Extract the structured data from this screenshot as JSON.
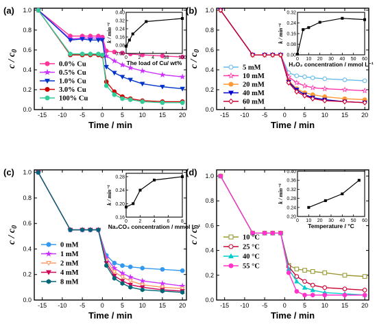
{
  "chart_data": [
    {
      "panel_label": "(a)",
      "type": "line",
      "xlabel": "Time / min",
      "ylabel": "c / c0",
      "xticks": [
        "-15",
        "-10",
        "-5",
        "0",
        "5",
        "10",
        "15",
        "20"
      ],
      "yticks": [
        "0.0",
        "0.2",
        "0.4",
        "0.6",
        "0.8",
        "1.0"
      ],
      "xlim": [
        -17,
        21
      ],
      "ylim": [
        0,
        1.02
      ],
      "legend_position": "bottom-left",
      "series": [
        {
          "name": "0.0% Cu",
          "color": "#ff3399",
          "marker": "circle",
          "x": [
            -16,
            -8,
            -5,
            -3,
            -1,
            0,
            1,
            3,
            5,
            7,
            10,
            15,
            20
          ],
          "y": [
            1.0,
            0.74,
            0.74,
            0.74,
            0.74,
            0.73,
            0.59,
            0.58,
            0.57,
            0.56,
            0.55,
            0.54,
            0.53
          ]
        },
        {
          "name": "0.5% Cu",
          "color": "#cc33ff",
          "marker": "star",
          "x": [
            -16,
            -8,
            -5,
            -3,
            -1,
            0,
            1,
            3,
            5,
            7,
            10,
            15,
            20
          ],
          "y": [
            1.0,
            0.71,
            0.72,
            0.72,
            0.72,
            0.71,
            0.54,
            0.49,
            0.45,
            0.42,
            0.39,
            0.35,
            0.33
          ]
        },
        {
          "name": "1.0% Cu",
          "color": "#0033cc",
          "marker": "triangle-down",
          "x": [
            -16,
            -8,
            -5,
            -3,
            -1,
            0,
            1,
            3,
            5,
            7,
            10,
            15,
            20
          ],
          "y": [
            1.0,
            0.7,
            0.71,
            0.7,
            0.7,
            0.7,
            0.43,
            0.37,
            0.33,
            0.3,
            0.26,
            0.23,
            0.21
          ]
        },
        {
          "name": "3.0% Cu",
          "color": "#cc0000",
          "marker": "circle",
          "x": [
            -16,
            -8,
            -5,
            -3,
            -1,
            0,
            1,
            3,
            5,
            7,
            10,
            15,
            20
          ],
          "y": [
            1.0,
            0.55,
            0.55,
            0.55,
            0.55,
            0.54,
            0.28,
            0.18,
            0.13,
            0.11,
            0.09,
            0.08,
            0.08
          ]
        },
        {
          "name": "100% Cu",
          "color": "#33cc99",
          "marker": "circle",
          "x": [
            -16,
            -8,
            -5,
            -3,
            -1,
            0,
            1,
            3,
            5,
            7,
            10,
            15,
            20
          ],
          "y": [
            1.0,
            0.56,
            0.56,
            0.56,
            0.56,
            0.55,
            0.24,
            0.15,
            0.11,
            0.1,
            0.08,
            0.07,
            0.07
          ]
        }
      ],
      "inset": {
        "xlabel": "The load of Cu/ wt%",
        "ylabel": "k / min⁻¹",
        "xticks": [
          "0",
          "2",
          "4",
          "98",
          "100"
        ],
        "yticks": [
          "0.00",
          "0.08",
          "0.16",
          "0.24",
          "0.32",
          "0.40"
        ],
        "ylim": [
          0,
          0.4
        ],
        "x_tick_positions": [
          0,
          2,
          4,
          6,
          8.4
        ],
        "x": [
          0,
          0.5,
          1,
          3,
          8.4
        ],
        "y": [
          0.07,
          0.13,
          0.19,
          0.31,
          0.34
        ]
      }
    },
    {
      "panel_label": "(b)",
      "type": "line",
      "xlabel": "Time / min",
      "ylabel": "c / c0",
      "xticks": [
        "-15",
        "-10",
        "-5",
        "0",
        "5",
        "10",
        "15",
        "20"
      ],
      "yticks": [
        "0.0",
        "0.2",
        "0.4",
        "0.6",
        "0.8",
        "1.0"
      ],
      "xlim": [
        -17,
        21
      ],
      "ylim": [
        0,
        1.02
      ],
      "legend_position": "bottom-left",
      "series": [
        {
          "name": "5  mM",
          "color": "#66bbee",
          "marker": "circle-open",
          "x": [
            -16,
            -8,
            -5,
            -3,
            -1,
            1,
            3,
            5,
            7,
            10,
            15,
            20
          ],
          "y": [
            1.0,
            0.55,
            0.55,
            0.55,
            0.55,
            0.37,
            0.34,
            0.33,
            0.32,
            0.31,
            0.3,
            0.29
          ]
        },
        {
          "name": "10  mM",
          "color": "#ff33aa",
          "marker": "star-open",
          "x": [
            -16,
            -8,
            -5,
            -3,
            -1,
            1,
            3,
            5,
            7,
            10,
            15,
            20
          ],
          "y": [
            1.0,
            0.55,
            0.55,
            0.55,
            0.55,
            0.33,
            0.27,
            0.24,
            0.22,
            0.21,
            0.2,
            0.19
          ]
        },
        {
          "name": "20  mM",
          "color": "#ff9933",
          "marker": "circle",
          "x": [
            -16,
            -8,
            -5,
            -3,
            -1,
            1,
            3,
            5,
            7,
            10,
            15,
            20
          ],
          "y": [
            1.0,
            0.55,
            0.55,
            0.55,
            0.55,
            0.29,
            0.21,
            0.17,
            0.15,
            0.13,
            0.11,
            0.1
          ]
        },
        {
          "name": "40  mM",
          "color": "#0000cc",
          "marker": "triangle-down",
          "x": [
            -16,
            -8,
            -5,
            -3,
            -1,
            1,
            3,
            5,
            7,
            10,
            15,
            20
          ],
          "y": [
            1.0,
            0.55,
            0.55,
            0.55,
            0.55,
            0.28,
            0.2,
            0.15,
            0.12,
            0.1,
            0.08,
            0.07
          ]
        },
        {
          "name": "60  mM",
          "color": "#cc0033",
          "marker": "diamond-open",
          "x": [
            -16,
            -8,
            -5,
            -3,
            -1,
            1,
            3,
            5,
            7,
            10,
            15,
            20
          ],
          "y": [
            1.0,
            0.55,
            0.55,
            0.55,
            0.55,
            0.27,
            0.18,
            0.14,
            0.11,
            0.09,
            0.08,
            0.07
          ]
        }
      ],
      "inset": {
        "xlabel": "H₂O₂ concentration / mmol L⁻¹",
        "ylabel": "k / min⁻¹",
        "xticks": [
          "0",
          "10",
          "20",
          "30",
          "40",
          "50",
          "60"
        ],
        "yticks": [
          "0.00",
          "0.08",
          "0.16",
          "0.24",
          "0.32"
        ],
        "ylim": [
          0,
          0.32
        ],
        "x_tick_positions": [
          0,
          10,
          20,
          30,
          40,
          50,
          60
        ],
        "x": [
          0,
          5,
          10,
          20,
          40,
          60
        ],
        "y": [
          0.005,
          0.19,
          0.205,
          0.245,
          0.275,
          0.265
        ]
      }
    },
    {
      "panel_label": "(c)",
      "type": "line",
      "xlabel": "Time / min",
      "ylabel": "c / c0",
      "xticks": [
        "-15",
        "-10",
        "-5",
        "0",
        "5",
        "10",
        "15",
        "20"
      ],
      "yticks": [
        "0.0",
        "0.2",
        "0.4",
        "0.6",
        "0.8",
        "1.0"
      ],
      "xlim": [
        -17,
        21
      ],
      "ylim": [
        0,
        1.02
      ],
      "legend_position": "bottom-left",
      "series": [
        {
          "name": "0 mM",
          "color": "#3399ee",
          "marker": "circle",
          "x": [
            -16,
            -8,
            -5,
            -3,
            -1,
            1,
            3,
            5,
            7,
            10,
            15,
            20
          ],
          "y": [
            1.0,
            0.55,
            0.55,
            0.55,
            0.55,
            0.35,
            0.29,
            0.27,
            0.26,
            0.25,
            0.24,
            0.23
          ]
        },
        {
          "name": "1 mM",
          "color": "#cc33ff",
          "marker": "star",
          "x": [
            -16,
            -8,
            -5,
            -3,
            -1,
            1,
            3,
            5,
            7,
            10,
            15,
            20
          ],
          "y": [
            1.0,
            0.55,
            0.55,
            0.55,
            0.55,
            0.33,
            0.25,
            0.21,
            0.18,
            0.15,
            0.13,
            0.11
          ]
        },
        {
          "name": "2 mM",
          "color": "#ff9966",
          "marker": "triangle-down-open",
          "x": [
            -16,
            -8,
            -5,
            -3,
            -1,
            1,
            3,
            5,
            7,
            10,
            15,
            20
          ],
          "y": [
            1.0,
            0.55,
            0.55,
            0.55,
            0.55,
            0.31,
            0.22,
            0.18,
            0.15,
            0.12,
            0.1,
            0.09
          ]
        },
        {
          "name": "4 mM",
          "color": "#cc0055",
          "marker": "triangle-down",
          "x": [
            -16,
            -8,
            -5,
            -3,
            -1,
            1,
            3,
            5,
            7,
            10,
            15,
            20
          ],
          "y": [
            1.0,
            0.55,
            0.55,
            0.55,
            0.55,
            0.29,
            0.19,
            0.15,
            0.12,
            0.1,
            0.08,
            0.07
          ]
        },
        {
          "name": "8 mM",
          "color": "#006677",
          "marker": "hexagon",
          "x": [
            -16,
            -8,
            -5,
            -3,
            -1,
            1,
            3,
            5,
            7,
            10,
            15,
            20
          ],
          "y": [
            1.0,
            0.55,
            0.55,
            0.55,
            0.55,
            0.27,
            0.17,
            0.13,
            0.1,
            0.08,
            0.07,
            0.06
          ]
        }
      ],
      "inset": {
        "xlabel": "Na₂CO₃ concentration / mmol L⁻¹",
        "ylabel": "k / min⁻¹",
        "xticks": [
          "0",
          "2",
          "4",
          "6",
          "8"
        ],
        "yticks": [
          "0.16",
          "0.20",
          "0.24",
          "0.28"
        ],
        "ylim": [
          0.16,
          0.29
        ],
        "x_tick_positions": [
          0,
          2,
          4,
          6,
          8
        ],
        "x": [
          0,
          1,
          2,
          4,
          8
        ],
        "y": [
          0.19,
          0.2,
          0.24,
          0.27,
          0.28
        ]
      }
    },
    {
      "panel_label": "(d)",
      "type": "line",
      "xlabel": "Time / min",
      "ylabel": "c / c0",
      "xticks": [
        "-15",
        "-10",
        "-5",
        "0",
        "5",
        "10",
        "15",
        "20"
      ],
      "yticks": [
        "0.0",
        "0.2",
        "0.4",
        "0.6",
        "0.8",
        "1.0"
      ],
      "xlim": [
        -17,
        21
      ],
      "ylim": [
        0,
        1.05
      ],
      "legend_position": "bottom-left",
      "series": [
        {
          "name": "10 °C",
          "color": "#999933",
          "marker": "square-open",
          "x": [
            -16,
            -8,
            -5,
            -3,
            -1,
            1,
            3,
            5,
            7,
            10,
            15,
            20
          ],
          "y": [
            1.0,
            0.54,
            0.54,
            0.54,
            0.54,
            0.28,
            0.25,
            0.24,
            0.23,
            0.22,
            0.2,
            0.19
          ]
        },
        {
          "name": "25 °C",
          "color": "#cc0033",
          "marker": "circle-open",
          "x": [
            -16,
            -8,
            -5,
            -3,
            -1,
            1,
            3,
            5,
            7,
            10,
            15,
            20
          ],
          "y": [
            1.0,
            0.54,
            0.54,
            0.54,
            0.54,
            0.27,
            0.19,
            0.15,
            0.12,
            0.1,
            0.09,
            0.08
          ]
        },
        {
          "name": "40 °C",
          "color": "#00cccc",
          "marker": "triangle-up",
          "x": [
            -16,
            -8,
            -5,
            -3,
            -1,
            1,
            3,
            5,
            7,
            10,
            15,
            20
          ],
          "y": [
            1.0,
            0.54,
            0.54,
            0.54,
            0.54,
            0.25,
            0.15,
            0.1,
            0.08,
            0.06,
            0.05,
            0.04
          ]
        },
        {
          "name": "55 °C",
          "color": "#ff33cc",
          "marker": "circle",
          "x": [
            -16,
            -8,
            -5,
            -3,
            -1,
            1,
            3,
            5,
            7,
            10,
            15,
            20
          ],
          "y": [
            1.0,
            0.54,
            0.54,
            0.54,
            0.54,
            0.22,
            0.07,
            0.04,
            0.04,
            0.04,
            0.04,
            0.04
          ]
        }
      ],
      "inset": {
        "xlabel": "Temperature / °C",
        "ylabel": "k / min⁻¹",
        "xticks": [
          "0",
          "10",
          "20",
          "30",
          "40",
          "50",
          "60"
        ],
        "yticks": [
          "0.20",
          "0.24",
          "0.28",
          "0.32",
          "0.36",
          "0.40"
        ],
        "ylim": [
          0.2,
          0.4
        ],
        "x_tick_positions": [
          0,
          10,
          20,
          30,
          40,
          50,
          60
        ],
        "x": [
          10,
          25,
          40,
          55
        ],
        "y": [
          0.24,
          0.27,
          0.3,
          0.36
        ]
      }
    }
  ]
}
